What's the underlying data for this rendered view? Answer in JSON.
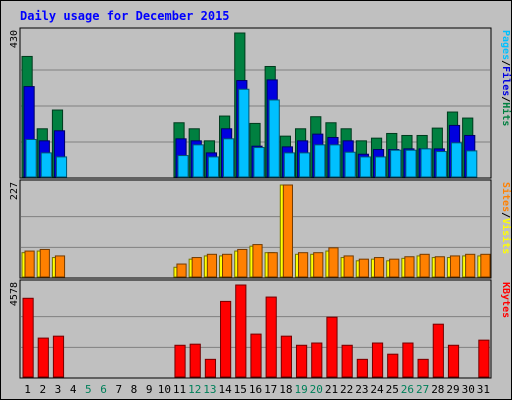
{
  "chart_data": {
    "type": "bar",
    "title": "Daily usage for December 2015",
    "days": [
      "1",
      "2",
      "3",
      "4",
      "5",
      "6",
      "7",
      "8",
      "9",
      "10",
      "11",
      "12",
      "13",
      "14",
      "15",
      "16",
      "17",
      "18",
      "19",
      "20",
      "21",
      "22",
      "23",
      "24",
      "25",
      "26",
      "27",
      "28",
      "29",
      "30",
      "31"
    ],
    "weekend_days": [
      "5",
      "6",
      "12",
      "13",
      "19",
      "20",
      "26",
      "27"
    ],
    "panels": [
      {
        "max_label": "430",
        "ymax": 430,
        "series": [
          {
            "key": "hits",
            "color": "#008040",
            "values": [
              360,
              144,
              200,
              0,
              0,
              0,
              0,
              0,
              0,
              0,
              162,
              144,
              108,
              182,
              430,
              160,
              330,
              122,
              144,
              180,
              162,
              144,
              108,
              116,
              130,
              124,
              124,
              146,
              194,
              176,
              0
            ]
          },
          {
            "key": "files",
            "color": "#0000e0",
            "values": [
              270,
              108,
              138,
              0,
              0,
              0,
              0,
              0,
              0,
              0,
              114,
              108,
              72,
              144,
              288,
              92,
              290,
              90,
              108,
              128,
              118,
              108,
              68,
              82,
              82,
              84,
              84,
              84,
              154,
              124,
              0
            ]
          },
          {
            "key": "pages",
            "color": "#00c0ff",
            "values": [
              112,
              72,
              60,
              0,
              0,
              0,
              0,
              0,
              0,
              0,
              64,
              96,
              60,
              114,
              262,
              88,
              230,
              72,
              72,
              96,
              96,
              74,
              60,
              60,
              80,
              80,
              84,
              76,
              102,
              78,
              0
            ]
          }
        ],
        "legend": [
          {
            "text": "Pages",
            "color": "#00c0ff"
          },
          {
            "text": "/",
            "color": "#000000"
          },
          {
            "text": "Files",
            "color": "#0000e0"
          },
          {
            "text": "/",
            "color": "#000000"
          },
          {
            "text": "Hits",
            "color": "#008040"
          }
        ]
      },
      {
        "max_label": "227",
        "ymax": 227,
        "series": [
          {
            "key": "visits",
            "color": "#ffff00",
            "values": [
              60,
              64,
              48,
              0,
              0,
              0,
              0,
              0,
              0,
              0,
              24,
              44,
              52,
              52,
              64,
              76,
              60,
              227,
              56,
              56,
              64,
              48,
              40,
              44,
              40,
              46,
              52,
              48,
              48,
              52,
              52
            ]
          },
          {
            "key": "sites",
            "color": "#ff8000",
            "values": [
              64,
              68,
              52,
              0,
              0,
              0,
              0,
              0,
              0,
              0,
              32,
              48,
              56,
              56,
              68,
              80,
              60,
              227,
              60,
              60,
              72,
              52,
              44,
              48,
              44,
              50,
              56,
              50,
              52,
              56,
              56
            ]
          }
        ],
        "legend": [
          {
            "text": "Sites",
            "color": "#ff8000"
          },
          {
            "text": "/",
            "color": "#000000"
          },
          {
            "text": "Visits",
            "color": "#ffff00"
          }
        ]
      },
      {
        "max_label": "4578",
        "ymax": 4578,
        "series": [
          {
            "key": "kbytes",
            "color": "#ff0000",
            "values": [
              3917,
              1936,
              2032,
              0,
              0,
              0,
              0,
              0,
              0,
              0,
              1579,
              1633,
              879,
              3762,
              4578,
              2135,
              3978,
              2032,
              1579,
              1691,
              2975,
              1579,
              879,
              1691,
              1135,
              1691,
              879,
              2628,
              1579,
              0,
              1834
            ]
          }
        ],
        "legend": [
          {
            "text": "KBytes",
            "color": "#ff0000"
          }
        ]
      }
    ]
  }
}
